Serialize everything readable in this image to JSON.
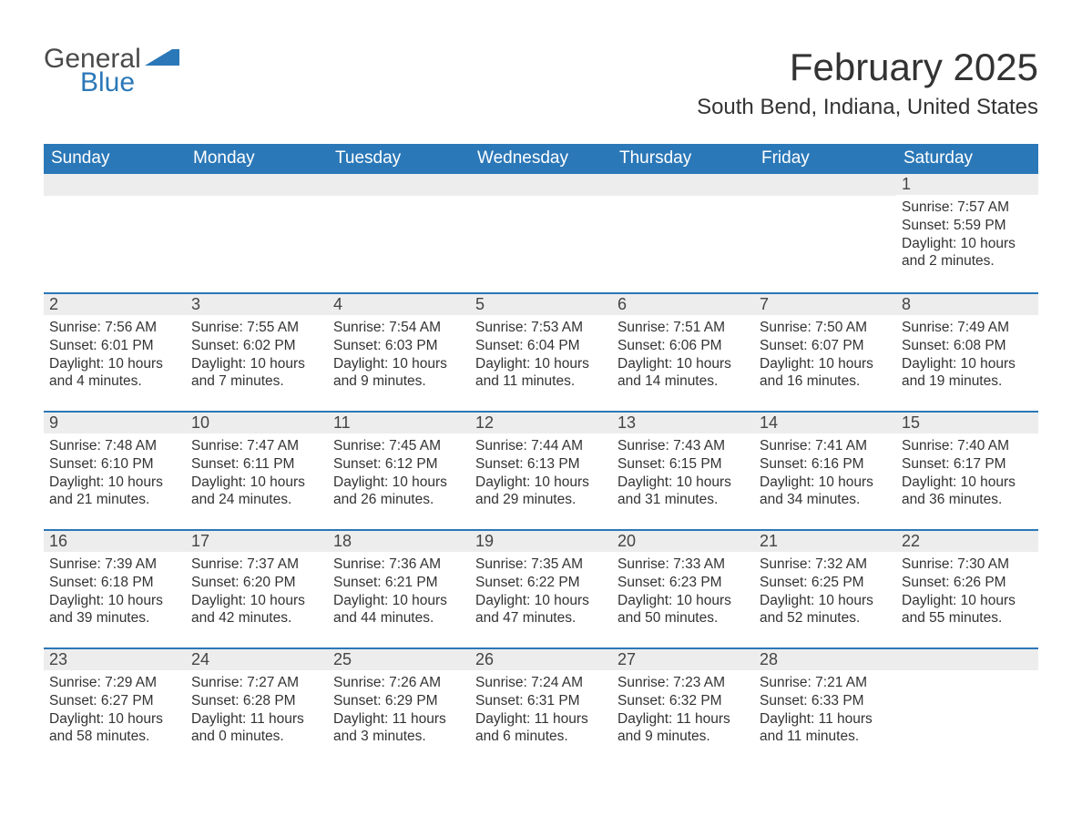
{
  "logo": {
    "word1": "General",
    "word2": "Blue",
    "accent_color": "#2b78b8",
    "text_color": "#4a4a4a"
  },
  "title": "February 2025",
  "subtitle": "South Bend, Indiana, United States",
  "header_bg": "#2b78b8",
  "header_fg": "#ffffff",
  "daynum_bg": "#ededed",
  "row_border_color": "#2b78b8",
  "body_text_color": "#333333",
  "title_fontsize": 42,
  "subtitle_fontsize": 24,
  "header_fontsize": 19,
  "daynum_fontsize": 18,
  "body_fontsize": 15.5,
  "day_headers": [
    "Sunday",
    "Monday",
    "Tuesday",
    "Wednesday",
    "Thursday",
    "Friday",
    "Saturday"
  ],
  "labels": {
    "sunrise": "Sunrise:",
    "sunset": "Sunset:",
    "daylight": "Daylight:"
  },
  "weeks": [
    [
      {
        "day": null
      },
      {
        "day": null
      },
      {
        "day": null
      },
      {
        "day": null
      },
      {
        "day": null
      },
      {
        "day": null
      },
      {
        "day": "1",
        "sunrise": "7:57 AM",
        "sunset": "5:59 PM",
        "daylight": "10 hours and 2 minutes."
      }
    ],
    [
      {
        "day": "2",
        "sunrise": "7:56 AM",
        "sunset": "6:01 PM",
        "daylight": "10 hours and 4 minutes."
      },
      {
        "day": "3",
        "sunrise": "7:55 AM",
        "sunset": "6:02 PM",
        "daylight": "10 hours and 7 minutes."
      },
      {
        "day": "4",
        "sunrise": "7:54 AM",
        "sunset": "6:03 PM",
        "daylight": "10 hours and 9 minutes."
      },
      {
        "day": "5",
        "sunrise": "7:53 AM",
        "sunset": "6:04 PM",
        "daylight": "10 hours and 11 minutes."
      },
      {
        "day": "6",
        "sunrise": "7:51 AM",
        "sunset": "6:06 PM",
        "daylight": "10 hours and 14 minutes."
      },
      {
        "day": "7",
        "sunrise": "7:50 AM",
        "sunset": "6:07 PM",
        "daylight": "10 hours and 16 minutes."
      },
      {
        "day": "8",
        "sunrise": "7:49 AM",
        "sunset": "6:08 PM",
        "daylight": "10 hours and 19 minutes."
      }
    ],
    [
      {
        "day": "9",
        "sunrise": "7:48 AM",
        "sunset": "6:10 PM",
        "daylight": "10 hours and 21 minutes."
      },
      {
        "day": "10",
        "sunrise": "7:47 AM",
        "sunset": "6:11 PM",
        "daylight": "10 hours and 24 minutes."
      },
      {
        "day": "11",
        "sunrise": "7:45 AM",
        "sunset": "6:12 PM",
        "daylight": "10 hours and 26 minutes."
      },
      {
        "day": "12",
        "sunrise": "7:44 AM",
        "sunset": "6:13 PM",
        "daylight": "10 hours and 29 minutes."
      },
      {
        "day": "13",
        "sunrise": "7:43 AM",
        "sunset": "6:15 PM",
        "daylight": "10 hours and 31 minutes."
      },
      {
        "day": "14",
        "sunrise": "7:41 AM",
        "sunset": "6:16 PM",
        "daylight": "10 hours and 34 minutes."
      },
      {
        "day": "15",
        "sunrise": "7:40 AM",
        "sunset": "6:17 PM",
        "daylight": "10 hours and 36 minutes."
      }
    ],
    [
      {
        "day": "16",
        "sunrise": "7:39 AM",
        "sunset": "6:18 PM",
        "daylight": "10 hours and 39 minutes."
      },
      {
        "day": "17",
        "sunrise": "7:37 AM",
        "sunset": "6:20 PM",
        "daylight": "10 hours and 42 minutes."
      },
      {
        "day": "18",
        "sunrise": "7:36 AM",
        "sunset": "6:21 PM",
        "daylight": "10 hours and 44 minutes."
      },
      {
        "day": "19",
        "sunrise": "7:35 AM",
        "sunset": "6:22 PM",
        "daylight": "10 hours and 47 minutes."
      },
      {
        "day": "20",
        "sunrise": "7:33 AM",
        "sunset": "6:23 PM",
        "daylight": "10 hours and 50 minutes."
      },
      {
        "day": "21",
        "sunrise": "7:32 AM",
        "sunset": "6:25 PM",
        "daylight": "10 hours and 52 minutes."
      },
      {
        "day": "22",
        "sunrise": "7:30 AM",
        "sunset": "6:26 PM",
        "daylight": "10 hours and 55 minutes."
      }
    ],
    [
      {
        "day": "23",
        "sunrise": "7:29 AM",
        "sunset": "6:27 PM",
        "daylight": "10 hours and 58 minutes."
      },
      {
        "day": "24",
        "sunrise": "7:27 AM",
        "sunset": "6:28 PM",
        "daylight": "11 hours and 0 minutes."
      },
      {
        "day": "25",
        "sunrise": "7:26 AM",
        "sunset": "6:29 PM",
        "daylight": "11 hours and 3 minutes."
      },
      {
        "day": "26",
        "sunrise": "7:24 AM",
        "sunset": "6:31 PM",
        "daylight": "11 hours and 6 minutes."
      },
      {
        "day": "27",
        "sunrise": "7:23 AM",
        "sunset": "6:32 PM",
        "daylight": "11 hours and 9 minutes."
      },
      {
        "day": "28",
        "sunrise": "7:21 AM",
        "sunset": "6:33 PM",
        "daylight": "11 hours and 11 minutes."
      },
      {
        "day": null
      }
    ]
  ]
}
